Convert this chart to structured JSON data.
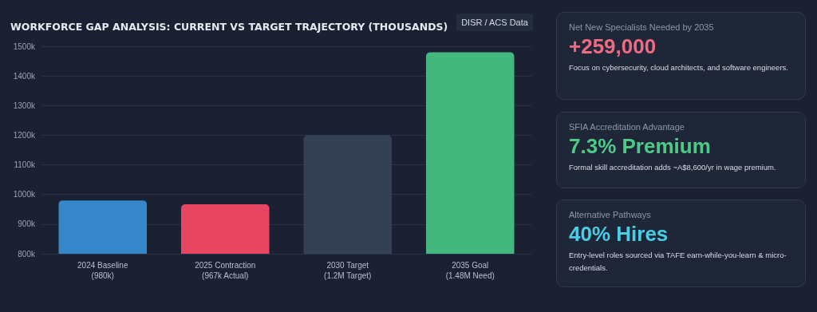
{
  "chart_data": [
    {
      "type": "bar",
      "title": "WORKFORCE GAP ANALYSIS: CURRENT VS TARGET TRAJECTORY (THOUSANDS)",
      "annotations": [
        "DISR / ACS Data"
      ],
      "categories": [
        "2024 Baseline\n(980k)",
        "2025 Contraction\n(967k Actual)",
        "2030 Target\n(1.2M Target)",
        "2035 Goal\n(1.48M Need)"
      ],
      "values": [
        980,
        967,
        1200,
        1480
      ],
      "colors": [
        "#3587c9",
        "#e84563",
        "#344154",
        "#43b77e"
      ],
      "ylim": [
        800,
        1500
      ],
      "yticks": [
        {
          "value": 800,
          "label": "800k"
        },
        {
          "value": 900,
          "label": "900k"
        },
        {
          "value": 1000,
          "label": "1000k"
        },
        {
          "value": 1100,
          "label": "1100k"
        },
        {
          "value": 1200,
          "label": "1200k"
        },
        {
          "value": 1300,
          "label": "1300k"
        },
        {
          "value": 1400,
          "label": "1400k"
        },
        {
          "value": 1500,
          "label": "1500k"
        }
      ],
      "grid": "y"
    },
    {
      "type": "other",
      "title": "Net New Specialists Needed by 2035",
      "subtitle": "+259,000",
      "annotations": [
        "Focus on cybersecurity, cloud architects, and software engineers."
      ]
    },
    {
      "type": "other",
      "title": "SFIA Accreditation Advantage",
      "subtitle": "7.3% Premium",
      "annotations": [
        "Formal skill accreditation adds ~A$8,600/yr in wage premium."
      ]
    },
    {
      "type": "other",
      "title": "Alternative Pathways",
      "subtitle": "40% Hires",
      "annotations": [
        "Entry-level roles sourced via TAFE earn-while-you-learn & micro-credentials."
      ]
    }
  ]
}
